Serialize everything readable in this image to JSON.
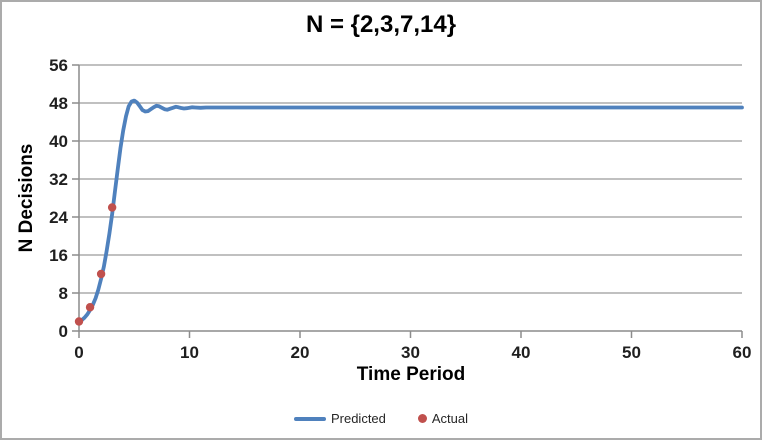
{
  "frame": {
    "background": "#ffffff",
    "border_color": "#ababab"
  },
  "colors": {
    "predicted_line": "#4F81BD",
    "actual_marker": "#C0504D",
    "gridline": "#9a9a9a",
    "axis_line": "#8c8c8c",
    "tick_label": "#1f1f1f",
    "title_text": "#000000",
    "legend_text": "#262626"
  },
  "chart_data": {
    "type": "line",
    "title": "N = {2,3,7,14}",
    "xlabel": "Time Period",
    "ylabel": "N Decisions",
    "xlim": [
      0,
      60
    ],
    "ylim": [
      0,
      56
    ],
    "x_ticks": [
      0,
      10,
      20,
      30,
      40,
      50,
      60
    ],
    "y_ticks": [
      0,
      8,
      16,
      24,
      32,
      40,
      48,
      56
    ],
    "grid": "horizontal-gridlines-only",
    "legend_position": "bottom-center",
    "series": [
      {
        "name": "Predicted",
        "type": "line",
        "color": "#4F81BD",
        "stroke_width": 3.8,
        "points": [
          [
            0,
            2
          ],
          [
            0.25,
            2.3
          ],
          [
            0.5,
            2.8
          ],
          [
            0.75,
            3.5
          ],
          [
            1,
            4.4
          ],
          [
            1.25,
            5.5
          ],
          [
            1.5,
            6.9
          ],
          [
            1.75,
            8.7
          ],
          [
            2,
            11
          ],
          [
            2.25,
            13.6
          ],
          [
            2.5,
            16.8
          ],
          [
            2.75,
            20.5
          ],
          [
            3,
            24.7
          ],
          [
            3.25,
            29.3
          ],
          [
            3.5,
            34
          ],
          [
            3.75,
            38.4
          ],
          [
            4,
            42.2
          ],
          [
            4.25,
            45.2
          ],
          [
            4.5,
            47.3
          ],
          [
            4.75,
            48.3
          ],
          [
            5,
            48.5
          ],
          [
            5.25,
            48.1
          ],
          [
            5.5,
            47.3
          ],
          [
            5.75,
            46.5
          ],
          [
            6,
            46.2
          ],
          [
            6.25,
            46.3
          ],
          [
            6.5,
            46.7
          ],
          [
            6.75,
            47.1
          ],
          [
            7,
            47.4
          ],
          [
            7.25,
            47.3
          ],
          [
            7.5,
            47
          ],
          [
            7.75,
            46.7
          ],
          [
            8,
            46.6
          ],
          [
            8.25,
            46.8
          ],
          [
            8.5,
            47
          ],
          [
            8.75,
            47.2
          ],
          [
            9,
            47.1
          ],
          [
            9.25,
            46.95
          ],
          [
            9.5,
            46.85
          ],
          [
            9.75,
            46.9
          ],
          [
            10,
            47
          ],
          [
            10.25,
            47.1
          ],
          [
            10.5,
            47.05
          ],
          [
            11,
            47
          ],
          [
            11.5,
            47.05
          ],
          [
            12,
            47.05
          ],
          [
            15,
            47.05
          ],
          [
            20,
            47.05
          ],
          [
            30,
            47.05
          ],
          [
            40,
            47.05
          ],
          [
            50,
            47.05
          ],
          [
            60,
            47.05
          ]
        ]
      },
      {
        "name": "Actual",
        "type": "scatter",
        "color": "#C0504D",
        "marker_radius": 4.2,
        "points": [
          [
            0,
            2
          ],
          [
            1,
            5
          ],
          [
            2,
            12
          ],
          [
            3,
            26
          ]
        ]
      }
    ]
  }
}
